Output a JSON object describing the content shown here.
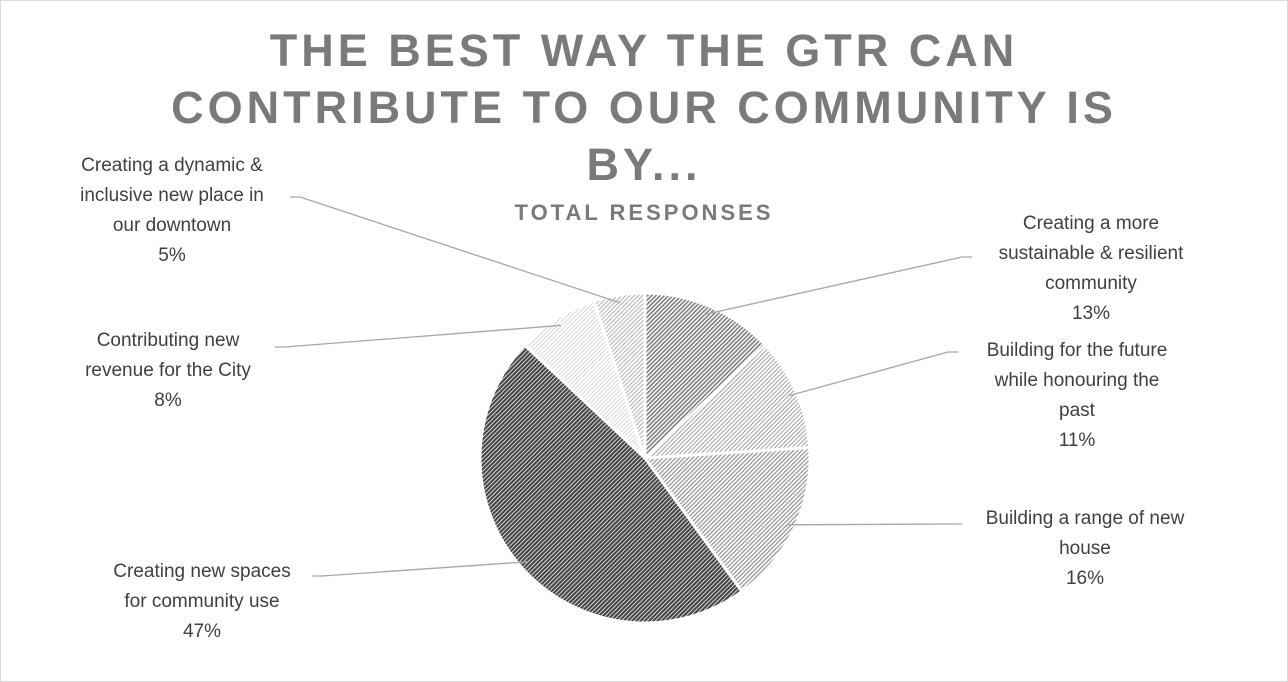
{
  "chart_data": {
    "type": "pie",
    "title_lines": [
      "THE BEST WAY THE GTR CAN",
      "CONTRIBUTE TO OUR COMMUNITY IS",
      "BY..."
    ],
    "subtitle": "TOTAL RESPONSES",
    "slices": [
      {
        "label_lines": [
          "Creating a more",
          "sustainable & resilient",
          "community"
        ],
        "pct_label": "13%",
        "value": 13
      },
      {
        "label_lines": [
          "Building for the future",
          "while honouring the",
          "past"
        ],
        "pct_label": "11%",
        "value": 11
      },
      {
        "label_lines": [
          "Building a range of new",
          "house"
        ],
        "pct_label": "16%",
        "value": 16
      },
      {
        "label_lines": [
          "Creating new spaces",
          "for community use"
        ],
        "pct_label": "47%",
        "value": 47
      },
      {
        "label_lines": [
          "Contributing new",
          "revenue for the City"
        ],
        "pct_label": "8%",
        "value": 8
      },
      {
        "label_lines": [
          "Creating a dynamic &",
          "inclusive new place in",
          "our downtown"
        ],
        "pct_label": "5%",
        "value": 5
      }
    ],
    "colors": [
      "#8a8a8a",
      "#bdbdbd",
      "#a6a6a6",
      "#555555",
      "#dedede",
      "#c8c8c8"
    ]
  }
}
